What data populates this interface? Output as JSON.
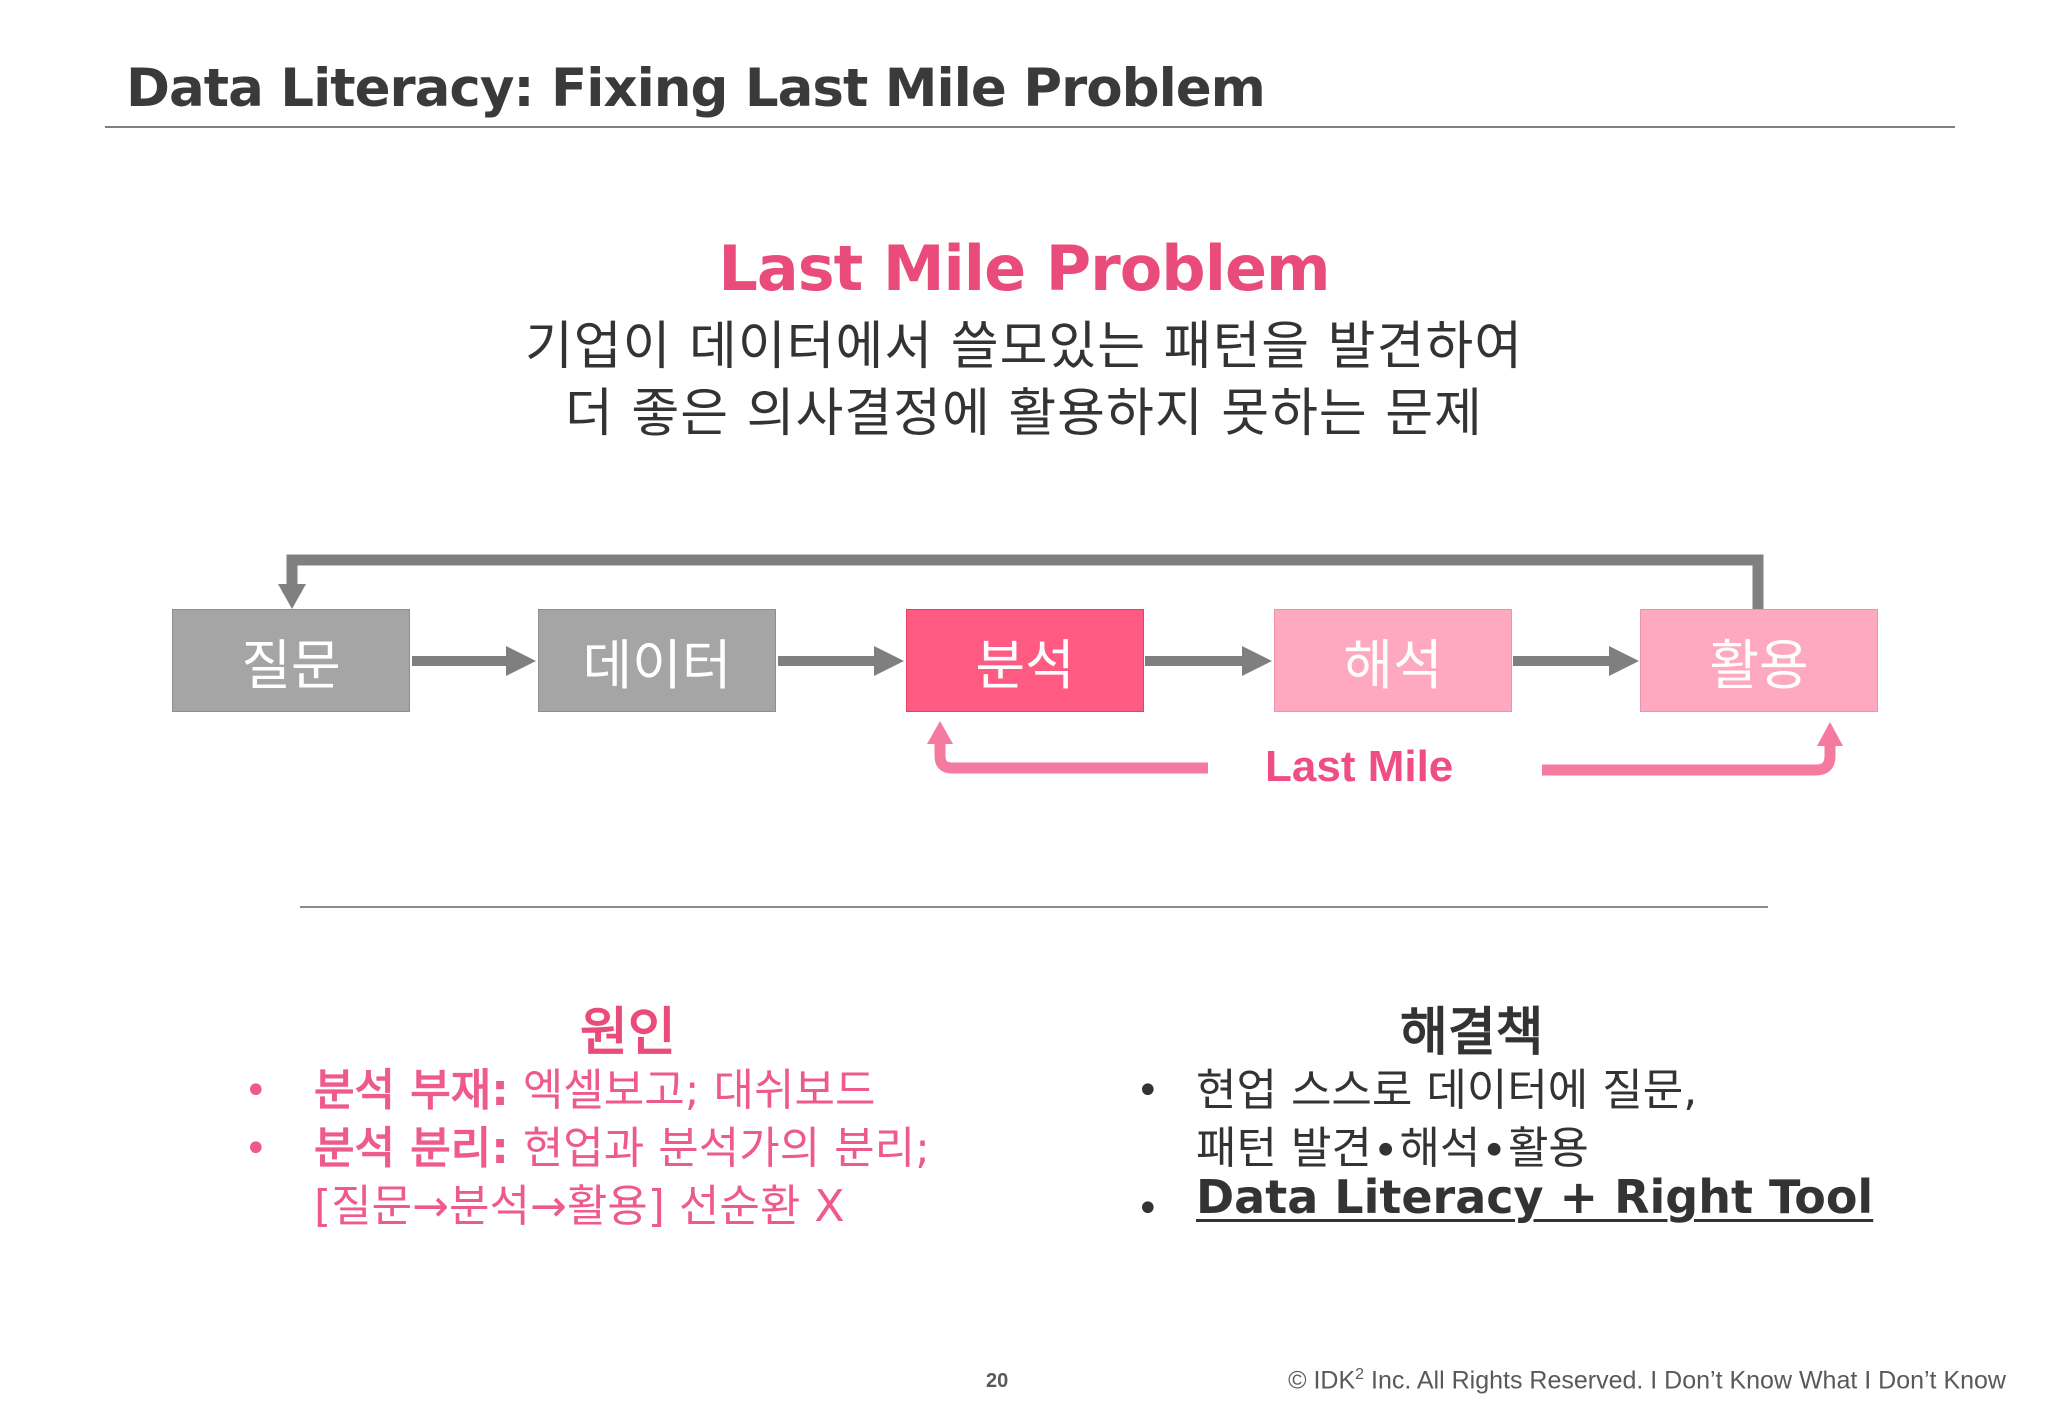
{
  "slide": {
    "title": "Data Literacy: Fixing Last Mile Problem"
  },
  "hero": {
    "headline": "Last Mile Problem",
    "line1": "기업이 데이터에서 쓸모있는 패턴을 발견하여",
    "line2": "더 좋은 의사결정에 활용하지 못하는 문제"
  },
  "flow": {
    "steps": [
      {
        "label": "질문"
      },
      {
        "label": "데이터"
      },
      {
        "label": "분석"
      },
      {
        "label": "해석"
      },
      {
        "label": "활용"
      }
    ],
    "last_mile_label": "Last Mile"
  },
  "cause": {
    "heading": "원인",
    "bullets": [
      {
        "strong": "분석 부재:",
        "text": " 엑셀보고; 대쉬보드"
      },
      {
        "strong": "분석 분리:",
        "text": " 현업과 분석가의 분리;",
        "text2": "[질문→분석→활용] 선순환 X"
      }
    ]
  },
  "solution": {
    "heading": "해결책",
    "bullets": [
      {
        "text": "현업 스스로 데이터에 질문,",
        "text2": "패턴 발견∙해석∙활용"
      },
      {
        "text": "Data Literacy + Right Tool"
      }
    ]
  },
  "footer": {
    "page_number": "20",
    "copyright_prefix": "© IDK",
    "copyright_sup": "2",
    "copyright_suffix": " Inc. All Rights Reserved.  I Don’t Know What I Don’t Know"
  },
  "colors": {
    "accent_pink": "#e94b7a",
    "box_gray": "#a5a5a5",
    "box_hot": "#ff5a82",
    "box_pink": "#ffa9c0",
    "arrow_gray": "#7f7f7f",
    "arrow_pink": "#f47aa0"
  }
}
